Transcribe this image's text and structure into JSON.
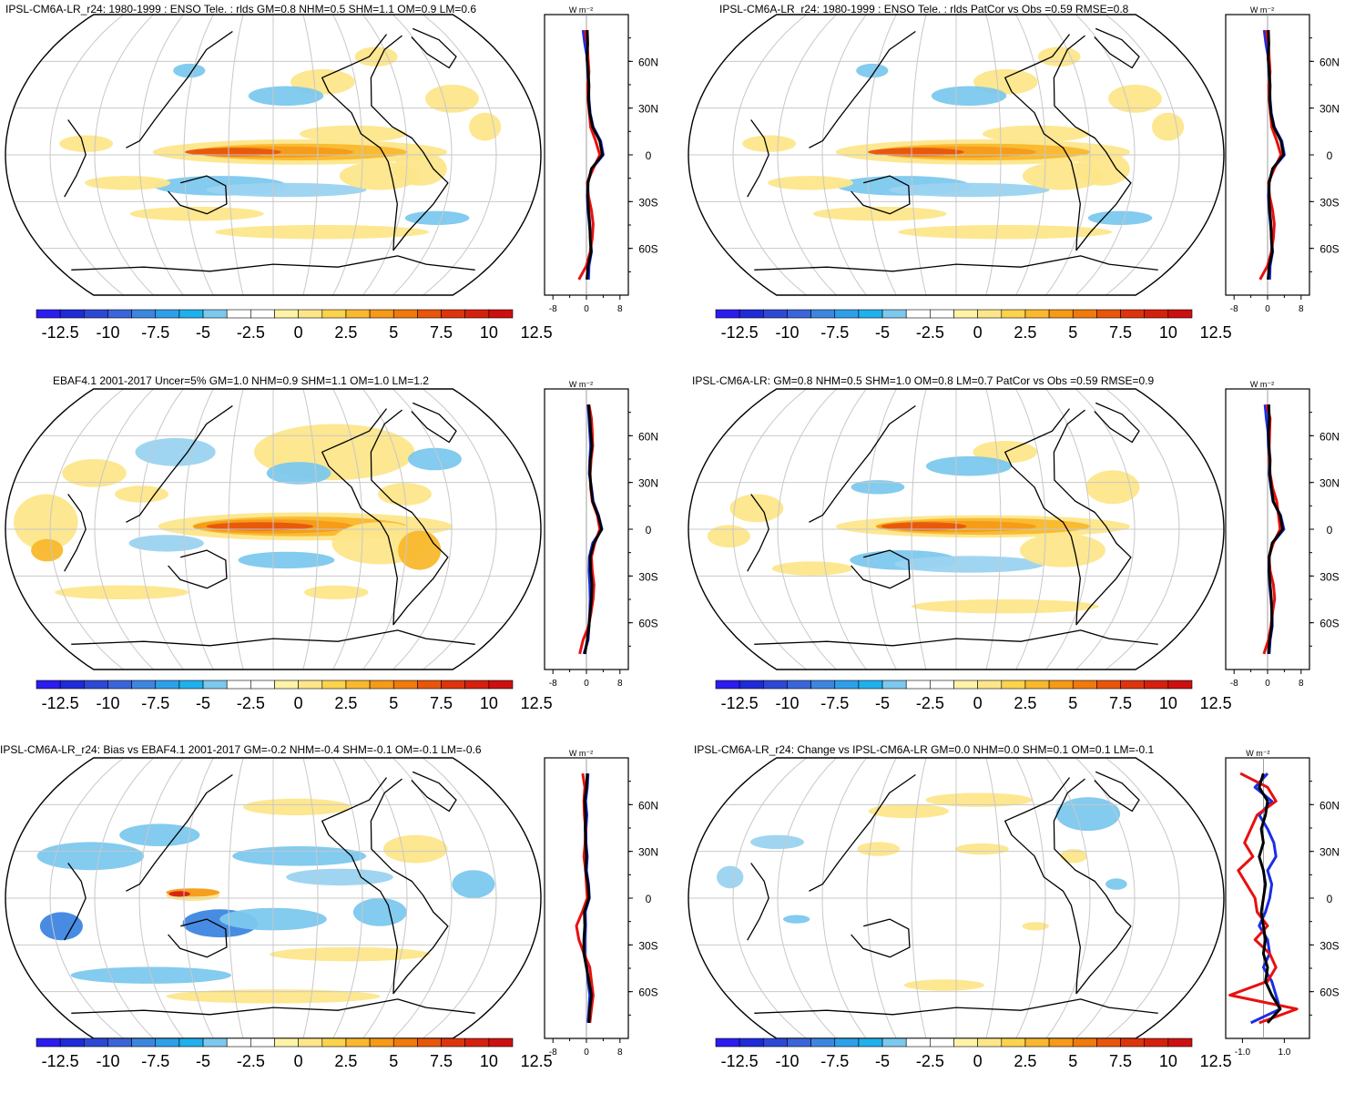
{
  "colorbar": {
    "colors": [
      "#2b1cf0",
      "#1f2ad8",
      "#2e48d6",
      "#3a64d9",
      "#3d86e0",
      "#2ea0ea",
      "#1fb0ee",
      "#7cc8ee",
      "#ffffff",
      "#ffffff",
      "#fff3a8",
      "#fde68a",
      "#fcd34d",
      "#f9b82d",
      "#f69a17",
      "#f07a0c",
      "#e8550b",
      "#de340d",
      "#d6200e",
      "#cc1010"
    ],
    "labels": [
      "-12.5",
      "-10",
      "-7.5",
      "-5",
      "-2.5",
      "0",
      "2.5",
      "5",
      "7.5",
      "10",
      "12.5"
    ]
  },
  "panels": [
    {
      "title": "IPSL-CM6A-LR_r24: 1980-1999 : ENSO Tele. : rlds GM=0.8 NHM=0.5 SHM=1.1 OM=0.9 LM=0.6",
      "unit": "W m⁻²",
      "lat_labels": [
        "60N",
        "30N",
        "0",
        "30S",
        "60S"
      ],
      "xticks": [
        "-8",
        "0",
        "8"
      ],
      "pattern": "enso",
      "zonal": {
        "black": [
          0.2,
          0.3,
          0.1,
          0.4,
          0.6,
          0.5,
          0.8,
          1.5,
          3.2,
          3.8,
          1.2,
          0.4,
          0.3,
          0.5,
          0.8,
          0.9,
          1.1,
          0.4,
          0.1
        ],
        "red": [
          -0.3,
          0.2,
          0.4,
          0.6,
          0.3,
          0.4,
          0.7,
          1.0,
          2.2,
          3.2,
          1.6,
          0.2,
          0.5,
          1.2,
          1.6,
          1.4,
          0.9,
          0.0,
          -1.8
        ],
        "blue": [
          -0.8,
          -0.4,
          0.2,
          0.3,
          0.5,
          0.6,
          0.9,
          1.6,
          3.4,
          4.0,
          1.3,
          0.3,
          0.2,
          0.4,
          0.7,
          1.0,
          1.2,
          0.6,
          0.5
        ]
      }
    },
    {
      "title": "IPSL-CM6A-LR_r24: 1980-1999 : ENSO Tele. : rlds PatCor vs Obs =0.59 RMSE=0.8",
      "unit": "W m⁻²",
      "lat_labels": [
        "60N",
        "30N",
        "0",
        "30S",
        "60S"
      ],
      "xticks": [
        "-8",
        "0",
        "8"
      ],
      "pattern": "enso",
      "zonal": {
        "black": [
          0.2,
          0.3,
          0.1,
          0.4,
          0.6,
          0.5,
          0.8,
          1.5,
          3.2,
          3.8,
          1.2,
          0.4,
          0.3,
          0.5,
          0.8,
          0.9,
          1.1,
          0.4,
          0.1
        ],
        "red": [
          -0.3,
          0.2,
          0.4,
          0.6,
          0.3,
          0.4,
          0.7,
          1.0,
          2.2,
          3.2,
          1.6,
          0.2,
          0.5,
          1.2,
          1.6,
          1.4,
          0.9,
          0.0,
          -1.8
        ],
        "blue": [
          -0.8,
          -0.4,
          0.2,
          0.3,
          0.5,
          0.6,
          0.9,
          1.6,
          3.4,
          4.0,
          1.3,
          0.3,
          0.2,
          0.4,
          0.7,
          1.0,
          1.2,
          0.6,
          0.5
        ]
      }
    },
    {
      "title": "EBAF4.1 2001-2017 Uncer=5% GM=1.0 NHM=0.9 SHM=1.1 OM=1.0 LM=1.2",
      "unit": "W m⁻²",
      "lat_labels": [
        "60N",
        "30N",
        "0",
        "30S",
        "60S"
      ],
      "xticks": [
        "-8",
        "0",
        "8"
      ],
      "pattern": "obs",
      "zonal": {
        "black": [
          0.5,
          0.8,
          1.0,
          1.3,
          0.9,
          0.8,
          1.1,
          1.5,
          2.8,
          3.6,
          1.8,
          0.9,
          1.0,
          1.3,
          1.2,
          0.9,
          0.6,
          0.2,
          -0.4
        ],
        "red": [
          0.6,
          1.2,
          1.4,
          1.5,
          1.1,
          0.9,
          1.0,
          1.4,
          2.6,
          3.2,
          2.0,
          1.2,
          1.4,
          1.8,
          1.6,
          1.1,
          0.5,
          -0.8,
          -1.6
        ],
        "blue": [
          0.4,
          0.6,
          0.8,
          1.0,
          0.8,
          0.7,
          1.2,
          1.6,
          2.9,
          3.7,
          1.5,
          0.7,
          0.6,
          0.8,
          0.9,
          0.8,
          0.6,
          0.4,
          -0.6
        ]
      }
    },
    {
      "title": "IPSL-CM6A-LR: GM=0.8 NHM=0.5 SHM=1.0 OM=0.8 LM=0.7 PatCor vs Obs =0.59 RMSE=0.9",
      "unit": "W m⁻²",
      "lat_labels": [
        "60N",
        "30N",
        "0",
        "30S",
        "60S"
      ],
      "xticks": [
        "-8",
        "0",
        "8"
      ],
      "pattern": "enso2",
      "zonal": {
        "black": [
          0.3,
          0.4,
          0.2,
          0.3,
          0.6,
          0.5,
          0.9,
          1.4,
          3.0,
          3.6,
          1.1,
          0.4,
          0.4,
          0.6,
          0.9,
          1.0,
          1.0,
          0.5,
          0.2
        ],
        "red": [
          -0.2,
          0.6,
          0.5,
          0.4,
          0.4,
          0.6,
          1.2,
          2.2,
          2.6,
          3.0,
          1.4,
          0.3,
          0.6,
          1.4,
          1.7,
          1.2,
          0.8,
          0.2,
          -0.9
        ],
        "blue": [
          -0.6,
          -0.3,
          0.1,
          0.2,
          0.5,
          0.4,
          0.8,
          1.3,
          3.1,
          3.9,
          1.2,
          0.4,
          0.3,
          0.5,
          0.8,
          1.1,
          1.1,
          0.6,
          0.4
        ]
      }
    },
    {
      "title": "IPSL-CM6A-LR_r24: Bias vs EBAF4.1 2001-2017 GM=-0.2 NHM=-0.4 SHM=-0.1 OM=-0.1 LM=-0.6",
      "unit": "W m⁻²",
      "lat_labels": [
        "60N",
        "30N",
        "0",
        "30S",
        "60S"
      ],
      "xticks": [
        "-8",
        "0",
        "8"
      ],
      "pattern": "bias",
      "zonal": {
        "black": [
          0.2,
          0.0,
          -0.4,
          -0.2,
          -0.3,
          -0.2,
          0.0,
          -0.2,
          0.4,
          0.6,
          -0.5,
          -0.4,
          -0.6,
          -0.6,
          0.0,
          0.6,
          1.2,
          0.8,
          0.6
        ],
        "red": [
          -0.9,
          -0.4,
          -0.6,
          -0.5,
          -0.2,
          -0.3,
          -0.6,
          -0.2,
          0.0,
          0.2,
          -1.0,
          -2.4,
          -1.8,
          -0.6,
          0.8,
          1.2,
          1.6,
          1.2,
          0.8
        ],
        "blue": [
          0.4,
          0.2,
          -0.2,
          0.1,
          -0.1,
          -0.1,
          0.2,
          0.0,
          0.5,
          0.7,
          -0.3,
          -0.2,
          -0.4,
          -0.4,
          0.1,
          0.4,
          0.8,
          0.6,
          0.4
        ]
      }
    },
    {
      "title": "IPSL-CM6A-LR_r24: Change vs IPSL-CM6A-LR GM=0.0 NHM=0.0 SHM=0.1 OM=0.1 LM=-0.1",
      "unit": "W m⁻²",
      "lat_labels": [
        "60N",
        "30N",
        "0",
        "30S",
        "60S"
      ],
      "xticks": [
        "-1.0",
        "1.0"
      ],
      "pattern": "change",
      "zonal": {
        "black": [
          0.0,
          -0.2,
          0.2,
          0.1,
          -0.1,
          0.0,
          -0.2,
          0.0,
          0.1,
          0.0,
          -0.1,
          0.0,
          0.1,
          0.0,
          0.2,
          0.1,
          0.4,
          0.8,
          0.2
        ],
        "red": [
          -1.1,
          0.2,
          0.6,
          -0.3,
          -0.6,
          -0.9,
          -0.5,
          -1.2,
          -0.8,
          -0.4,
          -0.3,
          0.2,
          -0.4,
          0.3,
          0.6,
          0.2,
          -1.6,
          1.6,
          -0.2
        ],
        "blue": [
          0.2,
          -0.4,
          0.4,
          -0.2,
          0.2,
          0.5,
          0.6,
          0.2,
          0.4,
          0.3,
          0.1,
          -0.2,
          0.2,
          0.3,
          0.0,
          0.4,
          0.6,
          0.8,
          -0.6
        ]
      }
    }
  ]
}
